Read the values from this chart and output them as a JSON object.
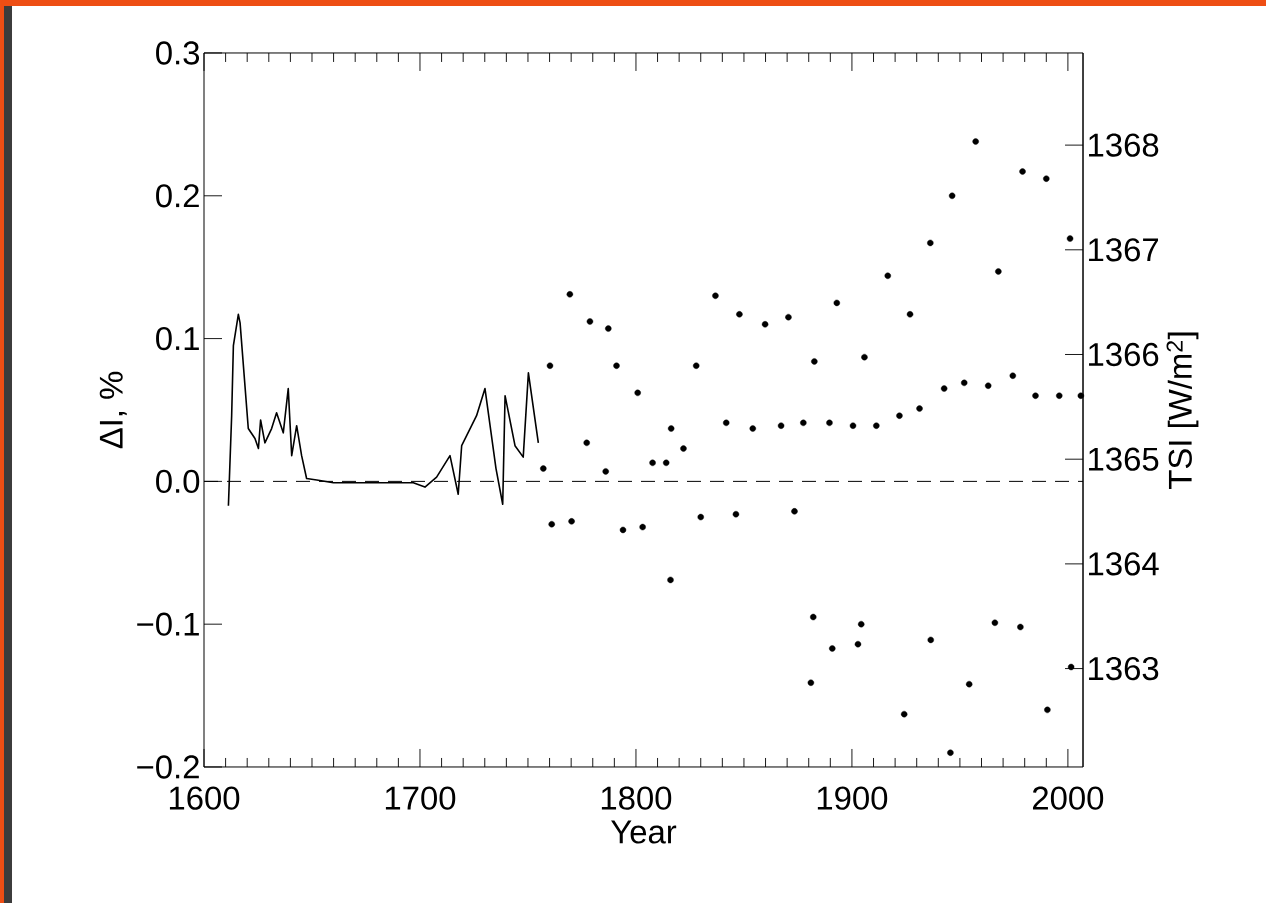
{
  "chart_data": {
    "type": "scatter",
    "xlabel": "Year",
    "ylabel": "ΔI, %",
    "y2label": "TSI [W/m$^{2}$]",
    "xlim": [
      1600,
      2007
    ],
    "xticks": [
      1600,
      1700,
      1800,
      1900,
      2000
    ],
    "ylim": [
      -0.2,
      0.3
    ],
    "yticks": [
      {
        "value": -0.2,
        "label": "−0.2"
      },
      {
        "value": -0.1,
        "label": "−0.1"
      },
      {
        "value": 0,
        "label": "0.0"
      },
      {
        "value": 0.1,
        "label": "0.1"
      },
      {
        "value": 0.2,
        "label": "0.2"
      },
      {
        "value": 0.3,
        "label": "0.3"
      }
    ],
    "y2lim": [
      1362.06,
      1368.88
    ],
    "y2ticks": [
      1363,
      1364,
      1365,
      1366,
      1367,
      1368
    ],
    "ref_lines": [
      {
        "axis": "y",
        "value": 0,
        "line_style": "dashed",
        "color": "#000000"
      }
    ],
    "series": [
      {
        "type": "line",
        "marker": "none",
        "color": "#000000",
        "x": [
          1611.3,
          1612.8,
          1613.6,
          1615.9,
          1616.7,
          1620.5,
          1623.6,
          1625.2,
          1626.2,
          1628.2,
          1631.3,
          1633.6,
          1636.7,
          1639,
          1640.6,
          1642.9,
          1645.2,
          1647.5,
          1652.2,
          1659.9,
          1670.7,
          1686.1,
          1696.9,
          1702.3,
          1707.7,
          1713.9,
          1717.7,
          1719.3,
          1721.6,
          1726.2,
          1730.1,
          1734,
          1735.2,
          1738.3,
          1739.4,
          1744,
          1747.8,
          1750.2,
          1754.8
        ],
        "values": [
          -0.017,
          0.046,
          0.095,
          0.117,
          0.111,
          0.037,
          0.03,
          0.023,
          0.043,
          0.027,
          0.037,
          0.048,
          0.034,
          0.065,
          0.018,
          0.039,
          0.018,
          0.002,
          0.001,
          -0.001,
          -0.001,
          -0.001,
          -0.001,
          -0.004,
          0.003,
          0.018,
          -0.009,
          0.025,
          0.032,
          0.046,
          0.065,
          0.022,
          0.009,
          -0.016,
          0.06,
          0.025,
          0.017,
          0.076,
          0.027
        ]
      },
      {
        "marker": "circle",
        "color": "#000000",
        "x": [
          1757.1,
          1760.2,
          1761,
          1769.4,
          1770.2,
          1777.2,
          1778.7,
          1786,
          1787.2,
          1791,
          1794,
          1800.8,
          1803.1,
          1807.7,
          1814,
          1816,
          1816.3,
          1822,
          1827.9,
          1830,
          1836.8,
          1841.8,
          1846.3,
          1847.9,
          1854.1,
          1859.8,
          1867.2,
          1870.6,
          1873.4,
          1877.5,
          1881,
          1882.1,
          1882.6,
          1889.6,
          1890.9,
          1893,
          1900.5,
          1902.8,
          1904.3,
          1905.8,
          1911.3,
          1916.6,
          1922,
          1924.2,
          1926.9,
          1931.3,
          1936.3,
          1936.5,
          1942.7,
          1945.6,
          1946.4,
          1952,
          1954.3,
          1957.3,
          1963.1,
          1966.2,
          1967.8,
          1974.5,
          1978,
          1979,
          1985,
          1990,
          1990.5,
          1996,
          2001,
          2001.5,
          2006
        ],
        "values": [
          0.009,
          0.081,
          -0.03,
          0.131,
          -0.028,
          0.027,
          0.112,
          0.007,
          0.107,
          0.081,
          -0.034,
          0.062,
          -0.032,
          0.013,
          0.013,
          -0.069,
          0.037,
          0.023,
          0.081,
          -0.025,
          0.13,
          0.041,
          -0.023,
          0.117,
          0.037,
          0.11,
          0.039,
          0.115,
          -0.021,
          0.041,
          -0.141,
          -0.095,
          0.084,
          0.041,
          -0.117,
          0.125,
          0.039,
          -0.114,
          -0.1,
          0.087,
          0.039,
          0.144,
          0.046,
          -0.163,
          0.117,
          0.051,
          0.167,
          -0.111,
          0.065,
          -0.19,
          0.2,
          0.069,
          -0.142,
          0.238,
          0.067,
          -0.099,
          0.147,
          0.074,
          -0.102,
          0.217,
          0.06,
          0.212,
          -0.16,
          0.06,
          0.17,
          -0.13,
          0.06
        ]
      }
    ]
  }
}
